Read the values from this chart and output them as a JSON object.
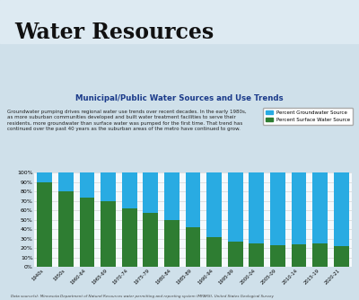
{
  "title_main": "Water Resources",
  "title_chart": "Municipal/Public Water Sources and Use Trends",
  "description": "Groundwater pumping drives regional water use trends over recent decades. In the early 1980s,\nas more suburban communities developed and built water treatment facilities to serve their\nresidents, more groundwater than surface water was pumped for the first time. That trend has\ncontinued over the past 40 years as the suburban areas of the metro have continued to grow.",
  "source": "Data source(s): Minnesota Department of Natural Resources water permitting and reporting system (MPARS), United States Geological Survey",
  "categories": [
    "1940s",
    "1950s",
    "1960-64",
    "1965-69",
    "1970-74",
    "1975-79",
    "1980-84",
    "1985-89",
    "1990-94",
    "1995-99",
    "2000-04",
    "2005-09",
    "2010-14",
    "2015-19",
    "2020-21"
  ],
  "groundwater_pct": [
    10,
    20,
    27,
    30,
    38,
    43,
    50,
    58,
    68,
    73,
    75,
    77,
    76,
    75,
    78
  ],
  "surface_water_pct": [
    90,
    80,
    73,
    70,
    62,
    57,
    50,
    42,
    32,
    27,
    25,
    23,
    24,
    25,
    22
  ],
  "groundwater_color": "#29ABE2",
  "surface_water_color": "#2E7D32",
  "background_color": "#cfe0ea",
  "chart_bg": "#f5f9fc",
  "legend_groundwater": "Percent Groundwater Source",
  "legend_surface": "Percent Surface Water Source",
  "ylim": [
    0,
    100
  ],
  "ytick_labels": [
    "0%",
    "10%",
    "20%",
    "30%",
    "40%",
    "50%",
    "60%",
    "70%",
    "80%",
    "90%",
    "100%"
  ],
  "title_color": "#1a1a1a",
  "chart_title_color": "#1a3a8a",
  "header_color": "#c8d8e4",
  "desc_color": "#222222",
  "source_color": "#444444"
}
